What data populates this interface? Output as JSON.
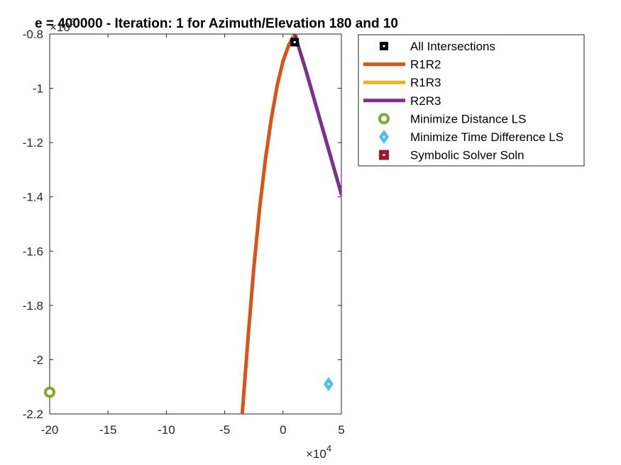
{
  "chart_data": {
    "type": "line",
    "title": "e = 400000 - Iteration: 1 for Azimuth/Elevation 180 and 10",
    "xlabel": "",
    "ylabel": "",
    "x_multiplier": "×10",
    "x_exponent": "4",
    "y_multiplier": "×10",
    "y_exponent": "6",
    "xlim": [
      -20,
      5
    ],
    "ylim": [
      -2.2,
      -0.8
    ],
    "xticks": [
      "-20",
      "-15",
      "-10",
      "-5",
      "0",
      "5"
    ],
    "yticks": [
      "-0.8",
      "-1",
      "-1.2",
      "-1.4",
      "-1.6",
      "-1.8",
      "-2",
      "-2.2"
    ],
    "xtick_values": [
      -20,
      -15,
      -10,
      -5,
      0,
      5
    ],
    "ytick_values": [
      -0.8,
      -1.0,
      -1.2,
      -1.4,
      -1.6,
      -1.8,
      -2.0,
      -2.2
    ],
    "grid": false,
    "legend_position": "outside-top-right",
    "series": [
      {
        "name": "R1R2",
        "kind": "line",
        "color": "#D95319",
        "x": [
          -3.5,
          -3.0,
          -2.5,
          -2.0,
          -1.5,
          -1.0,
          -0.5,
          0.0,
          0.5,
          1.0
        ],
        "y": [
          -2.2,
          -1.92,
          -1.66,
          -1.44,
          -1.26,
          -1.11,
          -0.99,
          -0.9,
          -0.84,
          -0.8
        ]
      },
      {
        "name": "R1R3",
        "kind": "line",
        "color": "#EDB120",
        "x": [
          0.85,
          1.0,
          1.15
        ],
        "y": [
          -0.805,
          -0.8,
          -0.805
        ]
      },
      {
        "name": "R2R3",
        "kind": "line",
        "color": "#7E2F8E",
        "x": [
          1.0,
          2.0,
          3.0,
          4.0,
          5.0
        ],
        "y": [
          -0.8,
          -0.94,
          -1.09,
          -1.24,
          -1.39
        ]
      },
      {
        "name": "All Intersections",
        "kind": "marker",
        "marker": "square",
        "color": "#000000",
        "x": [
          1.0
        ],
        "y": [
          -0.83
        ]
      },
      {
        "name": "Minimize Distance LS",
        "kind": "marker",
        "marker": "circle",
        "color": "#77AC30",
        "x": [
          -20.0
        ],
        "y": [
          -2.12
        ]
      },
      {
        "name": "Minimize Time Difference LS",
        "kind": "marker",
        "marker": "diamond",
        "color": "#4DBEEE",
        "x": [
          3.9
        ],
        "y": [
          -2.09
        ]
      }
    ],
    "legend": [
      {
        "label": "All Intersections",
        "type": "marker",
        "marker": "square",
        "color": "#000000"
      },
      {
        "label": "R1R2",
        "type": "line",
        "color": "#D95319"
      },
      {
        "label": "R1R3",
        "type": "line",
        "color": "#EDB120"
      },
      {
        "label": "R2R3",
        "type": "line",
        "color": "#7E2F8E"
      },
      {
        "label": "Minimize Distance LS",
        "type": "marker",
        "marker": "circle",
        "color": "#77AC30"
      },
      {
        "label": "Minimize Time Difference LS",
        "type": "marker",
        "marker": "diamond",
        "color": "#4DBEEE"
      },
      {
        "label": "Symbolic Solver Soln",
        "type": "marker",
        "marker": "square-filled",
        "color": "#A2142F"
      }
    ]
  }
}
